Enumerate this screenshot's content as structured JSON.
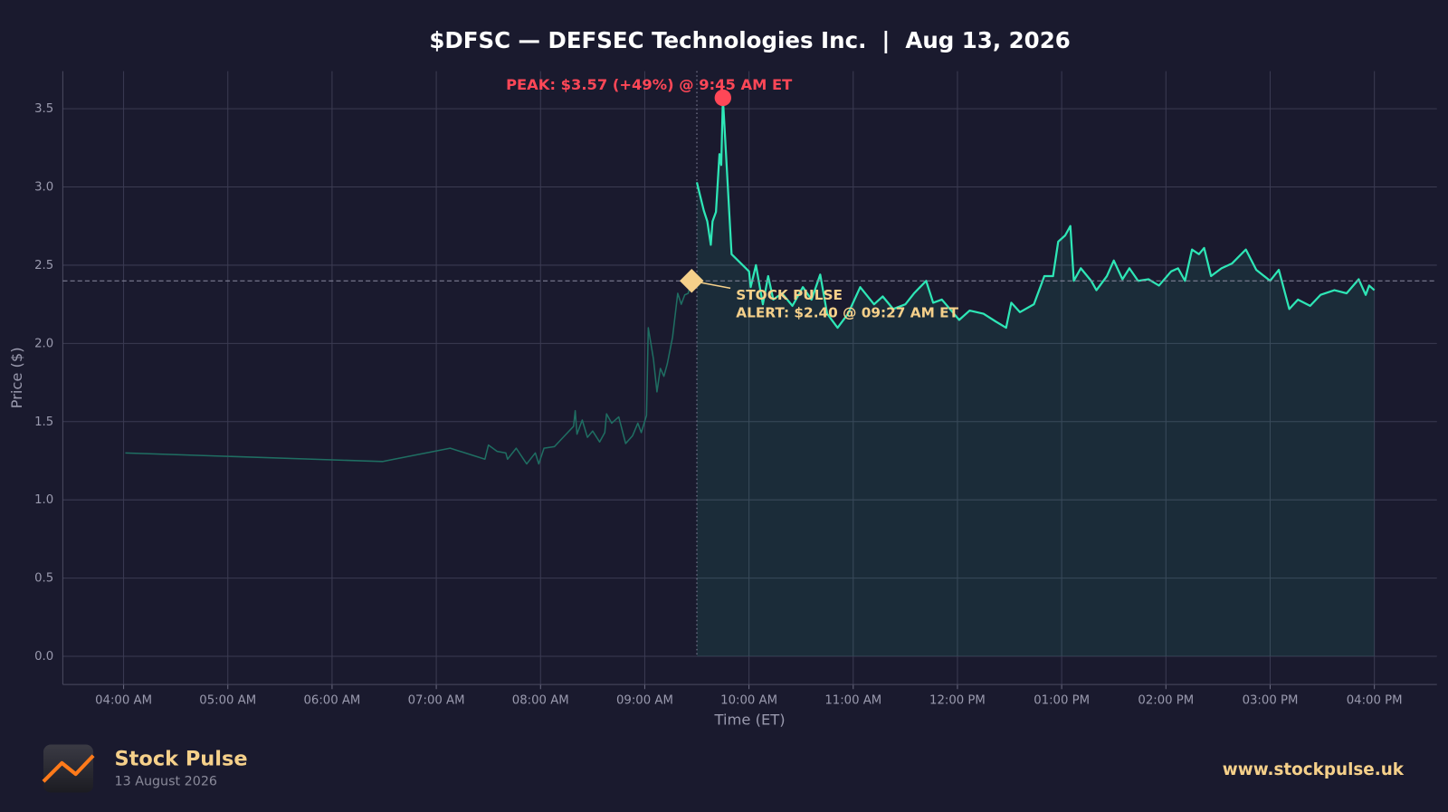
{
  "chart_data": {
    "type": "line",
    "title": "$DFSC — DEFSEC Technologies Inc.  |  Aug 13, 2026",
    "xlabel": "Time (ET)",
    "ylabel": "Price ($)",
    "x": [
      "04:01",
      "06:29",
      "07:08",
      "07:28",
      "07:30",
      "07:35",
      "07:40",
      "07:41",
      "07:46",
      "07:52",
      "07:57",
      "07:59",
      "08:02",
      "08:08",
      "08:13",
      "08:19",
      "08:20",
      "08:21",
      "08:24",
      "08:27",
      "08:30",
      "08:34",
      "08:37",
      "08:38",
      "08:41",
      "08:45",
      "08:49",
      "08:53",
      "08:56",
      "08:58",
      "09:01",
      "09:02",
      "09:05",
      "09:07",
      "09:09",
      "09:11",
      "09:13",
      "09:16",
      "09:19",
      "09:21",
      "09:23",
      "09:25",
      "09:27",
      "09:30",
      "09:34",
      "09:36",
      "09:38",
      "09:39",
      "09:41",
      "09:43",
      "09:44",
      "09:45",
      "09:50",
      "10:00",
      "10:01",
      "10:04",
      "10:08",
      "10:11",
      "10:14",
      "10:19",
      "10:25",
      "10:31",
      "10:36",
      "10:41",
      "10:45",
      "10:51",
      "10:57",
      "11:04",
      "11:12",
      "11:17",
      "11:23",
      "11:30",
      "11:35",
      "11:42",
      "11:46",
      "11:51",
      "12:01",
      "12:07",
      "12:15",
      "12:22",
      "12:28",
      "12:31",
      "12:36",
      "12:44",
      "12:50",
      "12:55",
      "12:58",
      "13:02",
      "13:05",
      "13:07",
      "13:11",
      "13:17",
      "13:20",
      "13:26",
      "13:30",
      "13:35",
      "13:39",
      "13:44",
      "13:50",
      "13:56",
      "14:03",
      "14:07",
      "14:11",
      "14:15",
      "14:19",
      "14:22",
      "14:26",
      "14:32",
      "14:38",
      "14:46",
      "14:52",
      "15:00",
      "15:05",
      "15:11",
      "15:16",
      "15:23",
      "15:29",
      "15:37",
      "15:44",
      "15:51",
      "15:55",
      "15:57",
      "16:00"
    ],
    "values": [
      1.3,
      1.245,
      1.33,
      1.26,
      1.35,
      1.31,
      1.3,
      1.26,
      1.33,
      1.23,
      1.3,
      1.23,
      1.33,
      1.34,
      1.4,
      1.47,
      1.57,
      1.42,
      1.51,
      1.4,
      1.44,
      1.37,
      1.43,
      1.55,
      1.49,
      1.53,
      1.36,
      1.41,
      1.49,
      1.43,
      1.54,
      2.1,
      1.9,
      1.69,
      1.84,
      1.79,
      1.87,
      2.04,
      2.32,
      2.25,
      2.31,
      2.32,
      2.4,
      3.03,
      2.85,
      2.78,
      2.63,
      2.78,
      2.84,
      3.21,
      3.14,
      3.57,
      2.57,
      2.46,
      2.36,
      2.5,
      2.25,
      2.43,
      2.28,
      2.32,
      2.24,
      2.36,
      2.28,
      2.44,
      2.19,
      2.1,
      2.19,
      2.36,
      2.25,
      2.3,
      2.22,
      2.25,
      2.32,
      2.4,
      2.26,
      2.28,
      2.15,
      2.21,
      2.19,
      2.14,
      2.1,
      2.26,
      2.2,
      2.25,
      2.43,
      2.43,
      2.65,
      2.69,
      2.75,
      2.4,
      2.48,
      2.4,
      2.34,
      2.43,
      2.53,
      2.41,
      2.48,
      2.4,
      2.41,
      2.37,
      2.46,
      2.48,
      2.4,
      2.6,
      2.57,
      2.61,
      2.43,
      2.48,
      2.51,
      2.6,
      2.47,
      2.4,
      2.47,
      2.22,
      2.28,
      2.24,
      2.31,
      2.34,
      2.32,
      2.41,
      2.31,
      2.37,
      2.34
    ],
    "color": "#2ee6b6",
    "premarket_color": "#1f6e62",
    "session_start": "09:30",
    "xlim": [
      "03:25",
      "16:36"
    ],
    "ylim": [
      -0.18,
      3.74
    ],
    "xticks": [
      {
        "value": "04:00",
        "label": "04:00 AM"
      },
      {
        "value": "05:00",
        "label": "05:00 AM"
      },
      {
        "value": "06:00",
        "label": "06:00 AM"
      },
      {
        "value": "07:00",
        "label": "07:00 AM"
      },
      {
        "value": "08:00",
        "label": "08:00 AM"
      },
      {
        "value": "09:00",
        "label": "09:00 AM"
      },
      {
        "value": "10:00",
        "label": "10:00 AM"
      },
      {
        "value": "11:00",
        "label": "11:00 AM"
      },
      {
        "value": "12:00",
        "label": "12:00 PM"
      },
      {
        "value": "13:00",
        "label": "01:00 PM"
      },
      {
        "value": "14:00",
        "label": "02:00 PM"
      },
      {
        "value": "15:00",
        "label": "03:00 PM"
      },
      {
        "value": "16:00",
        "label": "04:00 PM"
      }
    ],
    "yticks": [
      {
        "value": 0,
        "label": "0.0"
      },
      0.5,
      {
        "value": 1,
        "label": "1.0"
      },
      1.5,
      {
        "value": 2,
        "label": "2.0"
      },
      2.5,
      {
        "value": 3,
        "label": "3.0"
      },
      3.5
    ],
    "grid": true,
    "annotations": {
      "peak": {
        "text": "PEAK: $3.57 (+49%) @ 9:45 AM ET",
        "x": "09:45",
        "y": 3.57,
        "color": "#ff4757"
      },
      "alert": {
        "lines": [
          "STOCK PULSE",
          "ALERT: $2.40 @ 09:27 AM ET"
        ],
        "x": "09:27",
        "y": 2.4,
        "color": "#f5d08a"
      }
    }
  },
  "footer": {
    "brand": "Stock Pulse",
    "date": "13 August 2026",
    "url": "www.stockpulse.uk"
  }
}
